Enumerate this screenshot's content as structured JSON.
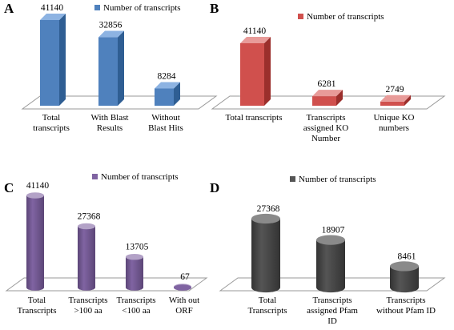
{
  "chart_data": [
    {
      "type": "bar",
      "panel": "A",
      "shape": "box",
      "legend": "Number of transcripts",
      "categories": [
        [
          "Total",
          "transcripts"
        ],
        [
          "With Blast",
          "Results"
        ],
        [
          "Without",
          "Blast Hits"
        ]
      ],
      "values": [
        41140,
        32856,
        8284
      ],
      "value_labels": [
        "41140",
        "32856",
        "8284"
      ],
      "colors": {
        "front": "#4f81bd",
        "side": "#2f5e93",
        "top": "#8db3e2"
      },
      "ylim": [
        0,
        41140
      ]
    },
    {
      "type": "bar",
      "panel": "B",
      "shape": "box",
      "legend": "Number of transcripts",
      "categories": [
        [
          "Total transcripts"
        ],
        [
          "Transcripts",
          "assigned KO",
          "Number"
        ],
        [
          "Unique KO",
          "numbers"
        ]
      ],
      "values": [
        41140,
        6281,
        2749
      ],
      "value_labels": [
        "41140",
        "6281",
        "2749"
      ],
      "colors": {
        "front": "#d0504d",
        "side": "#9b2f2c",
        "top": "#e89b99"
      },
      "ylim": [
        0,
        41140
      ]
    },
    {
      "type": "bar",
      "panel": "C",
      "shape": "cylinder",
      "legend": "Number of transcripts",
      "categories": [
        [
          "Total",
          "Transcripts"
        ],
        [
          "Transcripts",
          ">100 aa"
        ],
        [
          "Transcripts",
          "<100 aa"
        ],
        [
          "With out",
          "ORF"
        ]
      ],
      "values": [
        41140,
        27368,
        13705,
        67
      ],
      "value_labels": [
        "41140",
        "27368",
        "13705",
        "67"
      ],
      "colors": {
        "front": "#8064a2",
        "side": "#5c4677",
        "top": "#b3a2c7"
      },
      "ylim": [
        0,
        41140
      ]
    },
    {
      "type": "bar",
      "panel": "D",
      "shape": "cylinder",
      "legend": "Number of transcripts",
      "categories": [
        [
          "Total",
          "Transcripts"
        ],
        [
          "Transcripts",
          "assigned Pfam",
          "ID"
        ],
        [
          "Transcripts",
          "without Pfam ID"
        ]
      ],
      "values": [
        27368,
        18907,
        8461
      ],
      "value_labels": [
        "27368",
        "18907",
        "8461"
      ],
      "colors": {
        "front": "#555555",
        "side": "#333333",
        "top": "#8a8a8a"
      },
      "ylim": [
        0,
        27368
      ]
    }
  ]
}
